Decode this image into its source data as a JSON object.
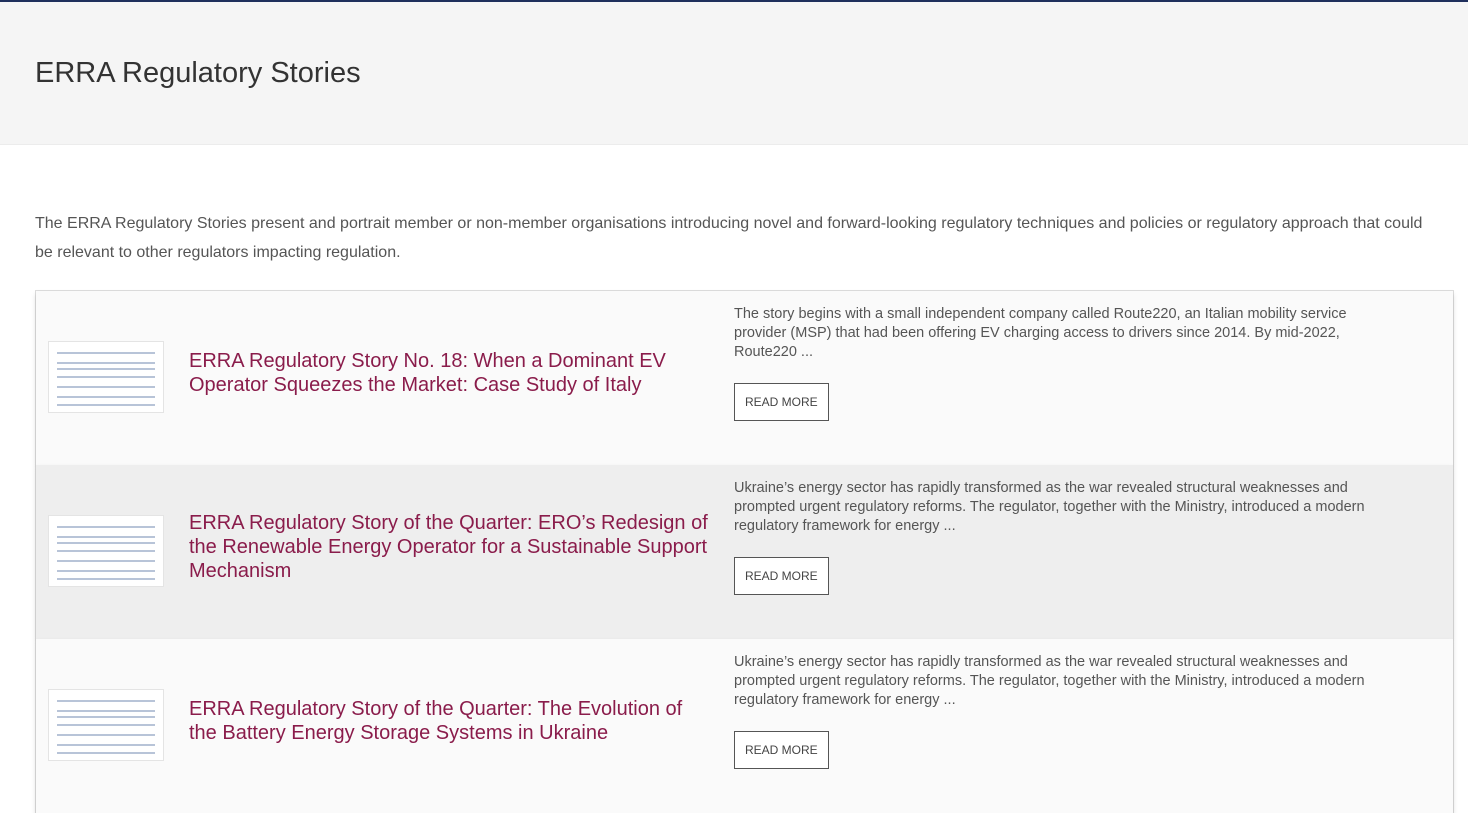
{
  "header": {
    "title": "ERRA Regulatory Stories"
  },
  "intro": "The ERRA Regulatory Stories present and portrait member or non-member organisations introducing novel and forward-looking regulatory techniques and policies or regulatory approach that could be relevant to other regulators impacting regulation.",
  "stories": [
    {
      "title": "ERRA Regulatory Story No. 18: When a Dominant EV Operator Squeezes the Market: Case Study of Italy",
      "excerpt": "The story begins with a small independent company called Route220, an Italian mobility service provider (MSP) that had been offering EV charging access to drivers since 2014. By mid-2022, Route220 ...",
      "button": "READ MORE"
    },
    {
      "title": "ERRA Regulatory Story of the Quarter: ERO’s Redesign of the Renewable Energy Operator for a Sustainable Support Mechanism",
      "excerpt": "Ukraine’s energy sector has rapidly transformed as the war revealed structural weaknesses and prompted urgent regulatory reforms. The regulator, together with the Ministry, introduced a modern regulatory framework for energy ...",
      "button": "READ MORE"
    },
    {
      "title": "ERRA Regulatory Story of the Quarter: The Evolution of the Battery Energy Storage Systems in Ukraine",
      "excerpt": "Ukraine’s energy sector has rapidly transformed as the war revealed structural weaknesses and prompted urgent regulatory reforms. The regulator, together with the Ministry, introduced a modern regulatory framework for energy ...",
      "button": "READ MORE"
    }
  ]
}
